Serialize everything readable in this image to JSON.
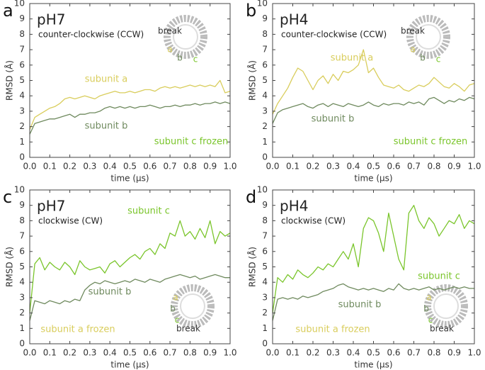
{
  "chart_data": [
    {
      "type": "line",
      "panel": "a",
      "title": "pH7",
      "subtitle": "counter-clockwise (CCW)",
      "xlabel": "time (μs)",
      "ylabel": "RMSD (Å)",
      "xlim": [
        0,
        1
      ],
      "ylim": [
        0,
        10
      ],
      "xticks": [
        {
          "value": 0,
          "label": "0.0"
        },
        0.1,
        0.2,
        0.3,
        0.4,
        0.5,
        0.6,
        0.7,
        0.8,
        0.9,
        {
          "value": 1,
          "label": "1.0"
        }
      ],
      "yticks": [
        0,
        1,
        2,
        3,
        4,
        5,
        6,
        7,
        8,
        9,
        10
      ],
      "grid": false,
      "x": [
        0,
        0.025,
        0.05,
        0.075,
        0.1,
        0.125,
        0.15,
        0.175,
        0.2,
        0.225,
        0.25,
        0.275,
        0.3,
        0.325,
        0.35,
        0.375,
        0.4,
        0.425,
        0.45,
        0.475,
        0.5,
        0.525,
        0.55,
        0.575,
        0.6,
        0.625,
        0.65,
        0.675,
        0.7,
        0.725,
        0.75,
        0.775,
        0.8,
        0.825,
        0.85,
        0.875,
        0.9,
        0.925,
        0.95,
        0.975,
        1
      ],
      "series": [
        {
          "name": "subunit a",
          "color": "#d9cd5c",
          "values": [
            1.8,
            2.6,
            2.8,
            3.0,
            3.2,
            3.3,
            3.5,
            3.8,
            3.9,
            3.8,
            3.9,
            4.0,
            3.9,
            3.8,
            4.0,
            4.1,
            4.2,
            4.3,
            4.2,
            4.2,
            4.3,
            4.2,
            4.3,
            4.4,
            4.4,
            4.3,
            4.5,
            4.6,
            4.5,
            4.6,
            4.5,
            4.6,
            4.7,
            4.6,
            4.7,
            4.6,
            4.7,
            4.6,
            5.0,
            4.2,
            4.3
          ]
        },
        {
          "name": "subunit b",
          "color": "#6f8a5e",
          "values": [
            1.5,
            2.2,
            2.3,
            2.4,
            2.5,
            2.5,
            2.6,
            2.7,
            2.8,
            2.6,
            2.8,
            2.8,
            2.9,
            2.9,
            3.0,
            3.2,
            3.3,
            3.2,
            3.3,
            3.2,
            3.3,
            3.2,
            3.3,
            3.3,
            3.4,
            3.3,
            3.2,
            3.3,
            3.3,
            3.4,
            3.3,
            3.4,
            3.4,
            3.5,
            3.4,
            3.5,
            3.5,
            3.6,
            3.5,
            3.6,
            3.5
          ]
        }
      ],
      "annotations": [
        {
          "text": "subunit a",
          "color": "#d9cd5c"
        },
        {
          "text": "subunit b",
          "color": "#6f8a5e"
        },
        {
          "text": "subunit c frozen",
          "color": "#7ac52b"
        }
      ],
      "inset_labels": [
        {
          "text": "break",
          "color": "#333"
        },
        {
          "text": "a",
          "color": "#d9cd5c"
        },
        {
          "text": "b",
          "color": "#6f8a5e"
        },
        {
          "text": "c",
          "color": "#7ac52b"
        }
      ]
    },
    {
      "type": "line",
      "panel": "b",
      "title": "pH4",
      "subtitle": "counter-clockwise (CCW)",
      "xlabel": "time (μs)",
      "ylabel": "RMSD (Å)",
      "xlim": [
        0,
        1
      ],
      "ylim": [
        0,
        10
      ],
      "xticks": [
        {
          "value": 0,
          "label": "0.0"
        },
        0.1,
        0.2,
        0.3,
        0.4,
        0.5,
        0.6,
        0.7,
        0.8,
        0.9,
        {
          "value": 1,
          "label": "1.0"
        }
      ],
      "yticks": [
        0,
        1,
        2,
        3,
        4,
        5,
        6,
        7,
        8,
        9,
        10
      ],
      "grid": false,
      "x": [
        0,
        0.025,
        0.05,
        0.075,
        0.1,
        0.125,
        0.15,
        0.175,
        0.2,
        0.225,
        0.25,
        0.275,
        0.3,
        0.325,
        0.35,
        0.375,
        0.4,
        0.425,
        0.45,
        0.475,
        0.5,
        0.525,
        0.55,
        0.575,
        0.6,
        0.625,
        0.65,
        0.675,
        0.7,
        0.725,
        0.75,
        0.775,
        0.8,
        0.825,
        0.85,
        0.875,
        0.9,
        0.925,
        0.95,
        0.975,
        1
      ],
      "series": [
        {
          "name": "subunit a",
          "color": "#d9cd5c",
          "values": [
            2.8,
            3.5,
            4.0,
            4.5,
            5.2,
            5.8,
            5.6,
            5.0,
            4.4,
            5.0,
            5.3,
            4.8,
            5.4,
            5.0,
            5.6,
            5.5,
            5.7,
            6.0,
            7.0,
            5.5,
            5.8,
            5.2,
            4.7,
            4.6,
            4.5,
            4.7,
            4.4,
            4.3,
            4.5,
            4.7,
            4.6,
            4.8,
            5.2,
            4.9,
            4.6,
            4.5,
            4.8,
            4.6,
            4.3,
            4.7,
            4.8
          ]
        },
        {
          "name": "subunit b",
          "color": "#6f8a5e",
          "values": [
            2.2,
            2.9,
            3.1,
            3.2,
            3.3,
            3.4,
            3.5,
            3.3,
            3.2,
            3.4,
            3.5,
            3.3,
            3.5,
            3.4,
            3.3,
            3.5,
            3.4,
            3.3,
            3.4,
            3.6,
            3.4,
            3.3,
            3.5,
            3.4,
            3.5,
            3.5,
            3.4,
            3.6,
            3.5,
            3.6,
            3.4,
            3.8,
            3.9,
            3.7,
            3.5,
            3.7,
            3.6,
            3.8,
            3.7,
            3.9,
            3.8
          ]
        }
      ],
      "annotations": [
        {
          "text": "subunit a",
          "color": "#d9cd5c"
        },
        {
          "text": "subunit b",
          "color": "#6f8a5e"
        },
        {
          "text": "subunit c frozen",
          "color": "#7ac52b"
        }
      ],
      "inset_labels": [
        {
          "text": "break",
          "color": "#333"
        },
        {
          "text": "a",
          "color": "#d9cd5c"
        },
        {
          "text": "b",
          "color": "#6f8a5e"
        },
        {
          "text": "c",
          "color": "#7ac52b"
        }
      ]
    },
    {
      "type": "line",
      "panel": "c",
      "title": "pH7",
      "subtitle": "clockwise (CW)",
      "xlabel": "time (μs)",
      "ylabel": "RMSD (Å)",
      "xlim": [
        0,
        1
      ],
      "ylim": [
        0,
        10
      ],
      "xticks": [
        {
          "value": 0,
          "label": "0.0"
        },
        0.1,
        0.2,
        0.3,
        0.4,
        0.5,
        0.6,
        0.7,
        0.8,
        0.9,
        {
          "value": 1,
          "label": "1.0"
        }
      ],
      "yticks": [
        0,
        1,
        2,
        3,
        4,
        5,
        6,
        7,
        8,
        9,
        10
      ],
      "grid": false,
      "x": [
        0,
        0.025,
        0.05,
        0.075,
        0.1,
        0.125,
        0.15,
        0.175,
        0.2,
        0.225,
        0.25,
        0.275,
        0.3,
        0.325,
        0.35,
        0.375,
        0.4,
        0.425,
        0.45,
        0.475,
        0.5,
        0.525,
        0.55,
        0.575,
        0.6,
        0.625,
        0.65,
        0.675,
        0.7,
        0.725,
        0.75,
        0.775,
        0.8,
        0.825,
        0.85,
        0.875,
        0.9,
        0.925,
        0.95,
        0.975,
        1
      ],
      "series": [
        {
          "name": "subunit c",
          "color": "#7ac52b",
          "values": [
            2.0,
            5.2,
            5.6,
            4.8,
            5.3,
            5.0,
            4.8,
            5.3,
            5.0,
            4.5,
            5.4,
            5.0,
            4.8,
            4.9,
            5.0,
            4.6,
            5.2,
            5.4,
            5.0,
            5.3,
            5.6,
            5.8,
            5.5,
            6.0,
            6.2,
            5.8,
            6.5,
            6.2,
            7.2,
            7.0,
            8.0,
            7.0,
            7.3,
            6.8,
            7.5,
            6.9,
            8.0,
            6.5,
            7.3,
            7.0,
            7.2
          ]
        },
        {
          "name": "subunit b",
          "color": "#6f8a5e",
          "values": [
            1.5,
            2.8,
            2.7,
            2.6,
            2.8,
            2.7,
            2.6,
            2.8,
            2.7,
            2.9,
            2.8,
            3.5,
            3.8,
            4.0,
            3.9,
            4.1,
            4.0,
            3.9,
            4.0,
            4.1,
            4.0,
            4.2,
            4.1,
            4.0,
            4.2,
            4.1,
            4.0,
            4.2,
            4.3,
            4.4,
            4.5,
            4.4,
            4.3,
            4.4,
            4.2,
            4.3,
            4.4,
            4.5,
            4.4,
            4.3,
            4.3
          ]
        }
      ],
      "annotations": [
        {
          "text": "subunit c",
          "color": "#7ac52b"
        },
        {
          "text": "subunit b",
          "color": "#6f8a5e"
        },
        {
          "text": "subunit a frozen",
          "color": "#d9cd5c"
        }
      ],
      "inset_labels": [
        {
          "text": "break",
          "color": "#333"
        },
        {
          "text": "a",
          "color": "#d9cd5c"
        },
        {
          "text": "b",
          "color": "#6f8a5e"
        },
        {
          "text": "c",
          "color": "#7ac52b"
        }
      ]
    },
    {
      "type": "line",
      "panel": "d",
      "title": "pH4",
      "subtitle": "clockwise (CW)",
      "xlabel": "time (μs)",
      "ylabel": "RMSD (Å)",
      "xlim": [
        0,
        1
      ],
      "ylim": [
        0,
        10
      ],
      "xticks": [
        {
          "value": 0,
          "label": "0.0"
        },
        0.1,
        0.2,
        0.3,
        0.4,
        0.5,
        0.6,
        0.7,
        0.8,
        0.9,
        {
          "value": 1,
          "label": "1.0"
        }
      ],
      "yticks": [
        0,
        1,
        2,
        3,
        4,
        5,
        6,
        7,
        8,
        9,
        10
      ],
      "grid": false,
      "x": [
        0,
        0.025,
        0.05,
        0.075,
        0.1,
        0.125,
        0.15,
        0.175,
        0.2,
        0.225,
        0.25,
        0.275,
        0.3,
        0.325,
        0.35,
        0.375,
        0.4,
        0.425,
        0.45,
        0.475,
        0.5,
        0.525,
        0.55,
        0.575,
        0.6,
        0.625,
        0.65,
        0.675,
        0.7,
        0.725,
        0.75,
        0.775,
        0.8,
        0.825,
        0.85,
        0.875,
        0.9,
        0.925,
        0.95,
        0.975,
        1
      ],
      "series": [
        {
          "name": "subunit c",
          "color": "#7ac52b",
          "values": [
            2.0,
            4.3,
            4.0,
            4.5,
            4.2,
            4.8,
            4.5,
            4.3,
            4.6,
            5.0,
            4.8,
            5.2,
            5.0,
            5.5,
            6.0,
            5.5,
            6.5,
            5.0,
            7.5,
            8.2,
            8.0,
            7.2,
            6.0,
            8.5,
            7.0,
            5.5,
            4.8,
            8.5,
            9.0,
            8.0,
            7.5,
            8.2,
            7.8,
            7.0,
            7.5,
            8.0,
            7.8,
            8.4,
            7.5,
            8.0,
            7.8
          ]
        },
        {
          "name": "subunit b",
          "color": "#6f8a5e",
          "values": [
            1.5,
            2.9,
            3.0,
            2.9,
            3.0,
            2.9,
            3.1,
            3.0,
            3.1,
            3.2,
            3.4,
            3.5,
            3.6,
            3.8,
            3.9,
            3.7,
            3.6,
            3.5,
            3.6,
            3.5,
            3.6,
            3.5,
            3.4,
            3.6,
            3.5,
            3.9,
            3.6,
            3.5,
            3.6,
            3.5,
            3.6,
            3.7,
            3.5,
            3.6,
            3.5,
            3.6,
            3.7,
            3.6,
            3.7,
            3.6,
            3.6
          ]
        }
      ],
      "annotations": [
        {
          "text": "subunit c",
          "color": "#7ac52b"
        },
        {
          "text": "subunit b",
          "color": "#6f8a5e"
        },
        {
          "text": "subunit a frozen",
          "color": "#d9cd5c"
        }
      ],
      "inset_labels": [
        {
          "text": "break",
          "color": "#333"
        },
        {
          "text": "a",
          "color": "#d9cd5c"
        },
        {
          "text": "b",
          "color": "#6f8a5e"
        },
        {
          "text": "c",
          "color": "#7ac52b"
        }
      ]
    }
  ]
}
